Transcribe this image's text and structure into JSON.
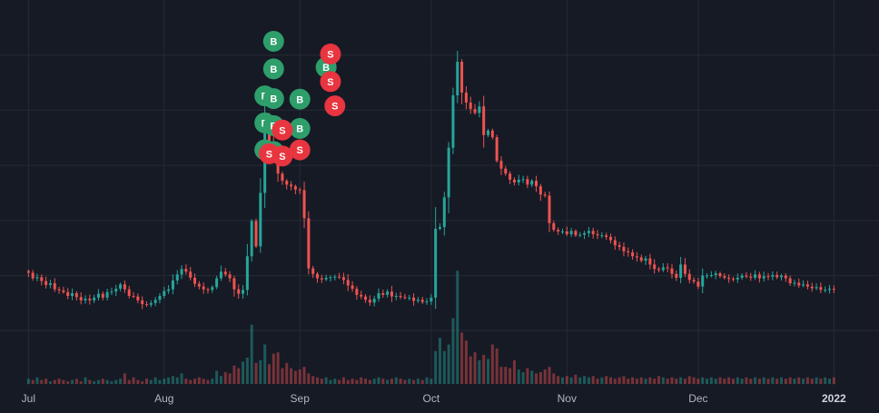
{
  "chart_data": {
    "type": "candlestick",
    "title": "",
    "xlabel": "",
    "ylabel": "",
    "x_tick_labels": [
      "Jul",
      "Aug",
      "Sep",
      "Oct",
      "Nov",
      "Dec",
      "2022"
    ],
    "x_ticks_day_index": [
      0,
      31,
      62,
      92,
      123,
      153,
      184
    ],
    "x_range_days": [
      -6.5,
      194.3
    ],
    "price_range": [
      0.3,
      1.0
    ],
    "grid": true,
    "colors": {
      "background": "#161a25",
      "grid": "#262a35",
      "up": "#26a69a",
      "down": "#ef5350",
      "buy_marker": "#2e9e6b",
      "sell_marker": "#e8353f",
      "axis_text": "#b2b5be"
    },
    "closes": [
      0.505,
      0.495,
      0.497,
      0.49,
      0.483,
      0.486,
      0.475,
      0.473,
      0.47,
      0.463,
      0.468,
      0.461,
      0.455,
      0.458,
      0.455,
      0.46,
      0.467,
      0.46,
      0.47,
      0.471,
      0.476,
      0.484,
      0.475,
      0.463,
      0.462,
      0.455,
      0.448,
      0.447,
      0.45,
      0.456,
      0.463,
      0.472,
      0.475,
      0.491,
      0.502,
      0.512,
      0.507,
      0.496,
      0.485,
      0.48,
      0.475,
      0.474,
      0.479,
      0.495,
      0.507,
      0.502,
      0.495,
      0.475,
      0.467,
      0.474,
      0.535,
      0.599,
      0.553,
      0.65,
      0.78,
      0.742,
      0.711,
      0.685,
      0.672,
      0.665,
      0.662,
      0.656,
      0.655,
      0.604,
      0.513,
      0.503,
      0.495,
      0.493,
      0.496,
      0.497,
      0.498,
      0.497,
      0.492,
      0.482,
      0.476,
      0.465,
      0.462,
      0.456,
      0.451,
      0.458,
      0.468,
      0.465,
      0.471,
      0.462,
      0.463,
      0.461,
      0.46,
      0.46,
      0.454,
      0.456,
      0.452,
      0.453,
      0.46,
      0.585,
      0.588,
      0.642,
      0.732,
      0.827,
      0.888,
      0.832,
      0.814,
      0.802,
      0.795,
      0.807,
      0.755,
      0.763,
      0.751,
      0.708,
      0.694,
      0.685,
      0.674,
      0.669,
      0.674,
      0.675,
      0.665,
      0.672,
      0.662,
      0.647,
      0.645,
      0.595,
      0.583,
      0.58,
      0.58,
      0.575,
      0.581,
      0.573,
      0.574,
      0.577,
      0.581,
      0.575,
      0.573,
      0.573,
      0.57,
      0.564,
      0.555,
      0.552,
      0.544,
      0.542,
      0.535,
      0.533,
      0.527,
      0.531,
      0.52,
      0.512,
      0.51,
      0.515,
      0.513,
      0.503,
      0.496,
      0.52,
      0.503,
      0.492,
      0.489,
      0.48,
      0.5,
      0.5,
      0.501,
      0.504,
      0.499,
      0.496,
      0.494,
      0.493,
      0.496,
      0.5,
      0.498,
      0.496,
      0.502,
      0.495,
      0.499,
      0.498,
      0.501,
      0.497,
      0.5,
      0.495,
      0.486,
      0.487,
      0.482,
      0.484,
      0.48,
      0.477,
      0.479,
      0.474,
      0.474,
      0.476,
      0.475
    ],
    "volume_range": [
      0,
      1.0
    ],
    "volumes": [
      0.04,
      0.03,
      0.05,
      0.03,
      0.04,
      0.02,
      0.03,
      0.04,
      0.03,
      0.02,
      0.03,
      0.04,
      0.02,
      0.05,
      0.03,
      0.02,
      0.03,
      0.04,
      0.03,
      0.02,
      0.03,
      0.04,
      0.08,
      0.03,
      0.05,
      0.03,
      0.02,
      0.04,
      0.03,
      0.05,
      0.03,
      0.04,
      0.05,
      0.06,
      0.05,
      0.08,
      0.04,
      0.03,
      0.04,
      0.05,
      0.04,
      0.03,
      0.04,
      0.1,
      0.06,
      0.09,
      0.08,
      0.14,
      0.12,
      0.17,
      0.2,
      0.45,
      0.16,
      0.18,
      0.3,
      0.15,
      0.23,
      0.24,
      0.12,
      0.16,
      0.12,
      0.1,
      0.11,
      0.13,
      0.08,
      0.06,
      0.05,
      0.04,
      0.05,
      0.03,
      0.04,
      0.03,
      0.05,
      0.03,
      0.04,
      0.03,
      0.05,
      0.04,
      0.03,
      0.04,
      0.05,
      0.04,
      0.03,
      0.04,
      0.05,
      0.04,
      0.03,
      0.04,
      0.03,
      0.04,
      0.03,
      0.05,
      0.04,
      0.25,
      0.35,
      0.25,
      0.3,
      0.5,
      0.86,
      0.39,
      0.33,
      0.21,
      0.24,
      0.18,
      0.22,
      0.19,
      0.3,
      0.27,
      0.13,
      0.13,
      0.12,
      0.18,
      0.11,
      0.09,
      0.12,
      0.1,
      0.08,
      0.09,
      0.11,
      0.13,
      0.08,
      0.06,
      0.05,
      0.06,
      0.05,
      0.07,
      0.05,
      0.06,
      0.05,
      0.06,
      0.04,
      0.05,
      0.06,
      0.05,
      0.04,
      0.05,
      0.06,
      0.04,
      0.05,
      0.04,
      0.05,
      0.04,
      0.05,
      0.04,
      0.06,
      0.05,
      0.04,
      0.05,
      0.04,
      0.05,
      0.04,
      0.06,
      0.05,
      0.04,
      0.05,
      0.04,
      0.05,
      0.04,
      0.05,
      0.04,
      0.05,
      0.04,
      0.05,
      0.04,
      0.05,
      0.04,
      0.05,
      0.04,
      0.05,
      0.04,
      0.05,
      0.04,
      0.05,
      0.04,
      0.05,
      0.04,
      0.05,
      0.04,
      0.05,
      0.04,
      0.05,
      0.04,
      0.05,
      0.04,
      0.05
    ],
    "trade_markers": [
      {
        "label": "B",
        "side": "buy",
        "day": 56,
        "price": 0.925
      },
      {
        "label": "B",
        "side": "buy",
        "day": 56,
        "price": 0.875
      },
      {
        "label": "B",
        "side": "buy",
        "day": 54,
        "price": 0.826
      },
      {
        "label": "B",
        "side": "buy",
        "day": 56,
        "price": 0.821
      },
      {
        "label": "B",
        "side": "buy",
        "day": 54,
        "price": 0.777
      },
      {
        "label": "B",
        "side": "buy",
        "day": 56,
        "price": 0.772
      },
      {
        "label": "B",
        "side": "buy",
        "day": 54,
        "price": 0.728
      },
      {
        "label": "B",
        "side": "buy",
        "day": 56,
        "price": 0.725
      },
      {
        "label": "B",
        "side": "buy",
        "day": 62,
        "price": 0.82
      },
      {
        "label": "B",
        "side": "buy",
        "day": 62,
        "price": 0.767
      },
      {
        "label": "B",
        "side": "buy",
        "day": 68,
        "price": 0.878
      },
      {
        "label": "S",
        "side": "sell",
        "day": 69,
        "price": 0.902
      },
      {
        "label": "S",
        "side": "sell",
        "day": 69,
        "price": 0.852
      },
      {
        "label": "S",
        "side": "sell",
        "day": 70,
        "price": 0.808
      },
      {
        "label": "S",
        "side": "sell",
        "day": 58,
        "price": 0.764
      },
      {
        "label": "S",
        "side": "sell",
        "day": 62,
        "price": 0.728
      },
      {
        "label": "S",
        "side": "sell",
        "day": 55,
        "price": 0.721
      },
      {
        "label": "S",
        "side": "sell",
        "day": 58,
        "price": 0.717
      }
    ]
  }
}
